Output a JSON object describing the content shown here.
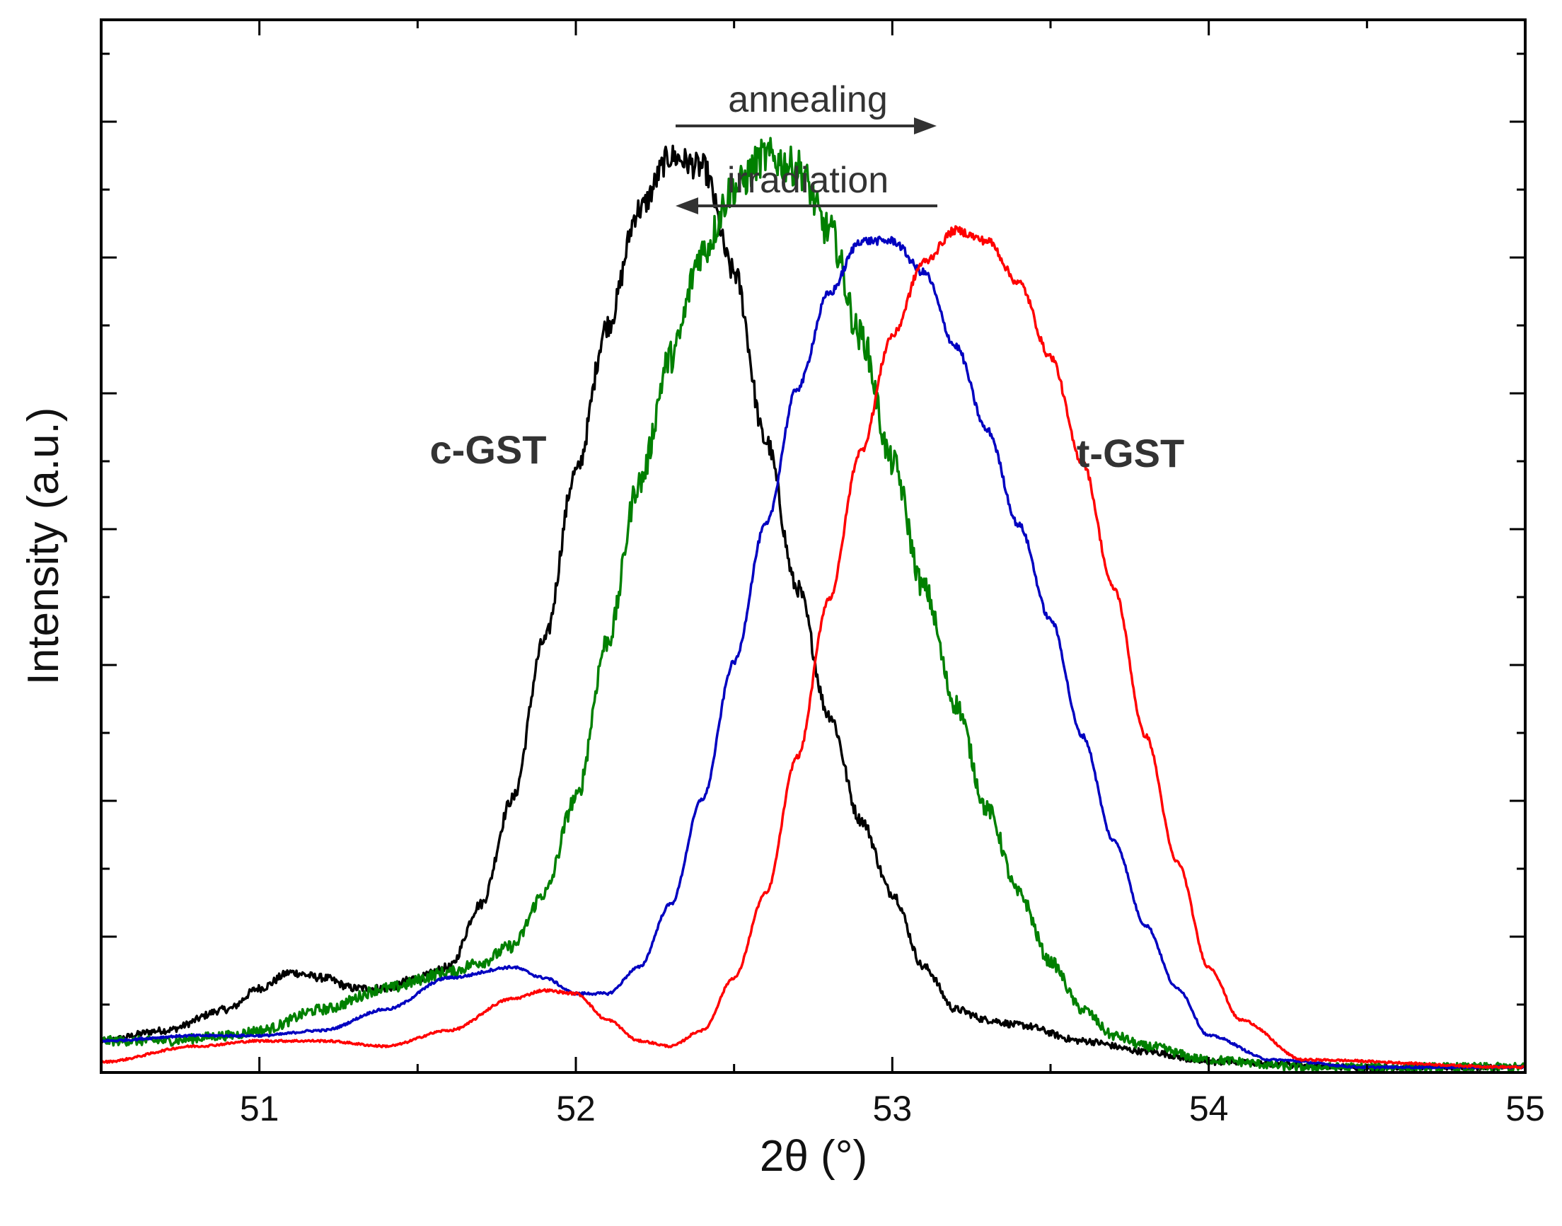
{
  "chart_data": {
    "type": "line",
    "xlabel": "2θ (°)",
    "ylabel": "Intensity (a.u.)",
    "xlim": [
      50.5,
      55
    ],
    "ylim": [
      0,
      100
    ],
    "x_ticks": [
      "51",
      "52",
      "53",
      "54",
      "55"
    ],
    "y_ticks_labeled": false,
    "grid": false,
    "legend": null,
    "annotations": [
      {
        "text": "annealing",
        "arrow_direction": "right",
        "x_from": 52.3,
        "x_to": 53.1
      },
      {
        "text": "irradiation",
        "arrow_direction": "left",
        "x_from": 53.1,
        "x_to": 52.3
      }
    ],
    "series_labels": [
      {
        "text": "c-GST",
        "x": 51.95,
        "y": 73
      },
      {
        "text": "t-GST",
        "x": 53.8,
        "y": 73
      }
    ],
    "series": [
      {
        "color": "#000000",
        "x": [
          50.5,
          50.7,
          50.9,
          51.0,
          51.1,
          51.2,
          51.3,
          51.4,
          51.5,
          51.6,
          51.7,
          51.8,
          51.9,
          52.0,
          52.1,
          52.2,
          52.3,
          52.4,
          52.5,
          52.6,
          52.7,
          52.8,
          52.9,
          53.0,
          53.1,
          53.2,
          53.3,
          53.4,
          53.6,
          53.8,
          54.0,
          54.5,
          55.0
        ],
        "y": [
          3,
          4,
          6,
          8,
          9.5,
          9,
          8,
          8,
          9,
          10,
          16,
          26,
          41,
          57,
          71,
          82,
          87,
          86,
          76,
          60,
          46,
          34,
          24,
          17,
          10,
          6,
          5,
          4.5,
          3,
          2,
          1,
          0.5,
          0.5
        ]
      },
      {
        "color": "#008000",
        "x": [
          50.5,
          50.7,
          50.9,
          51.0,
          51.2,
          51.4,
          51.6,
          51.7,
          51.8,
          51.9,
          52.0,
          52.1,
          52.2,
          52.3,
          52.4,
          52.5,
          52.6,
          52.7,
          52.8,
          52.9,
          53.0,
          53.1,
          53.2,
          53.3,
          53.4,
          53.5,
          53.6,
          53.7,
          53.8,
          54.0,
          54.3,
          55.0
        ],
        "y": [
          3,
          3,
          3.5,
          4,
          6,
          8,
          9.5,
          10.5,
          12,
          17,
          26,
          41,
          56,
          68,
          78,
          84,
          87,
          86,
          80,
          70,
          58,
          46,
          35,
          25,
          17,
          10.5,
          6,
          3.5,
          2.5,
          1.2,
          0.5,
          0.5
        ]
      },
      {
        "color": "#0000c0",
        "x": [
          50.5,
          50.8,
          51.0,
          51.2,
          51.4,
          51.6,
          51.8,
          51.9,
          52.0,
          52.1,
          52.2,
          52.3,
          52.4,
          52.5,
          52.6,
          52.7,
          52.8,
          52.9,
          53.0,
          53.1,
          53.2,
          53.3,
          53.4,
          53.5,
          53.6,
          53.7,
          53.8,
          53.9,
          54.0,
          54.2,
          54.5,
          55.0
        ],
        "y": [
          3,
          3.5,
          3.5,
          4,
          6,
          9,
          10,
          9,
          7.5,
          7.5,
          10,
          16,
          26,
          39,
          52,
          65,
          74,
          79,
          79,
          76,
          69,
          61,
          52,
          43,
          32,
          22,
          14,
          8,
          3.5,
          1.2,
          0.5,
          0.5
        ]
      },
      {
        "color": "#ff0000",
        "x": [
          50.5,
          50.8,
          51.0,
          51.2,
          51.4,
          51.6,
          51.8,
          51.9,
          52.0,
          52.1,
          52.2,
          52.3,
          52.4,
          52.5,
          52.6,
          52.7,
          52.8,
          52.9,
          53.0,
          53.1,
          53.2,
          53.3,
          53.4,
          53.5,
          53.6,
          53.7,
          53.8,
          53.9,
          54.0,
          54.1,
          54.3,
          55.0
        ],
        "y": [
          1,
          2.5,
          3,
          3,
          2.5,
          4,
          7,
          7.8,
          7.5,
          5,
          3,
          2.5,
          4,
          9,
          17,
          30,
          45,
          59,
          70,
          77,
          80,
          79,
          75,
          68,
          58,
          46,
          32,
          20,
          10,
          5,
          1.2,
          0.5
        ]
      }
    ]
  }
}
